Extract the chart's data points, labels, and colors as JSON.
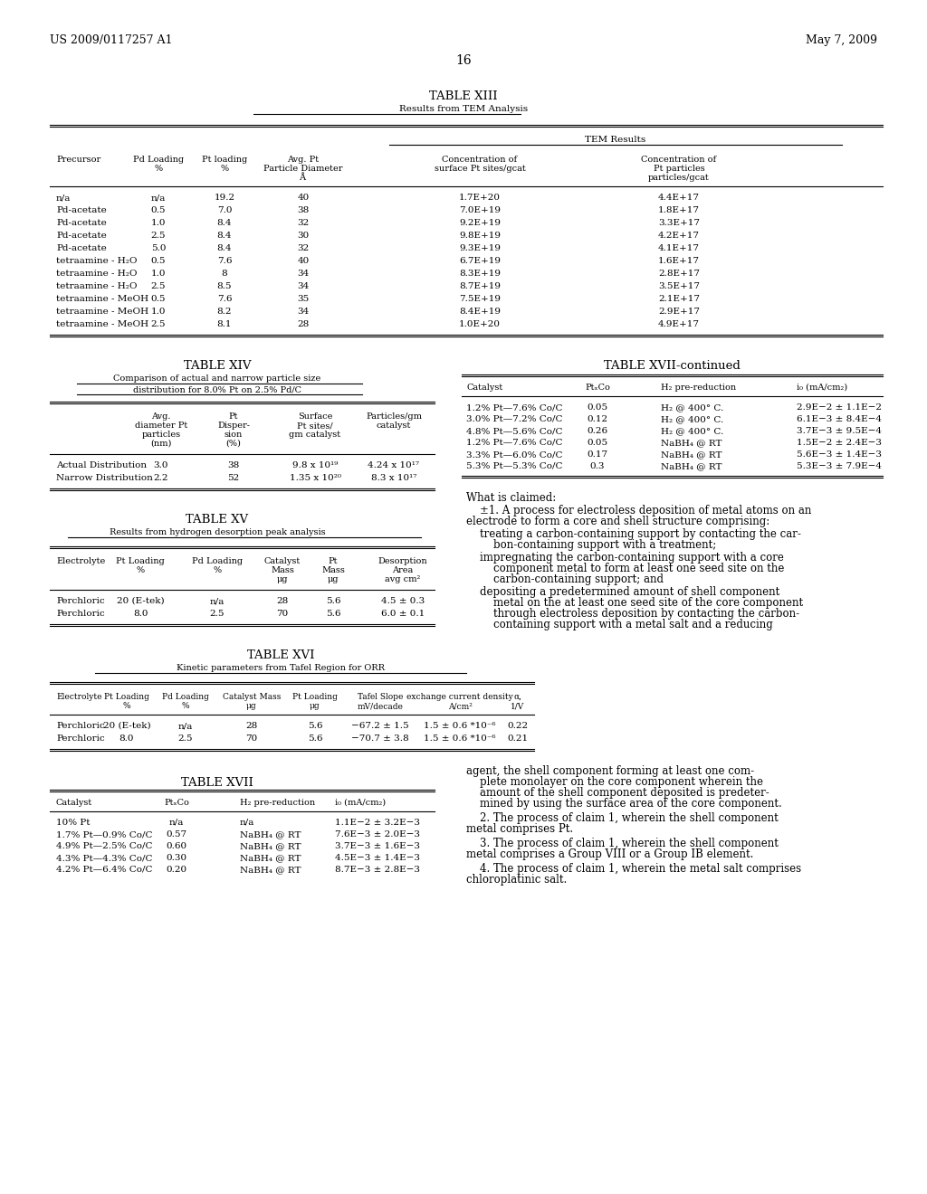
{
  "header_left": "US 2009/0117257 A1",
  "header_right": "May 7, 2009",
  "page_num": "16",
  "bg_color": "#ffffff",
  "text_color": "#000000",
  "table13_rows": [
    [
      "n/a",
      "n/a",
      "19.2",
      "40",
      "1.7E+20",
      "4.4E+17"
    ],
    [
      "Pd-acetate",
      "0.5",
      "7.0",
      "38",
      "7.0E+19",
      "1.8E+17"
    ],
    [
      "Pd-acetate",
      "1.0",
      "8.4",
      "32",
      "9.2E+19",
      "3.3E+17"
    ],
    [
      "Pd-acetate",
      "2.5",
      "8.4",
      "30",
      "9.8E+19",
      "4.2E+17"
    ],
    [
      "Pd-acetate",
      "5.0",
      "8.4",
      "32",
      "9.3E+19",
      "4.1E+17"
    ],
    [
      "tetraamine - H₂O",
      "0.5",
      "7.6",
      "40",
      "6.7E+19",
      "1.6E+17"
    ],
    [
      "tetraamine - H₂O",
      "1.0",
      "8",
      "34",
      "8.3E+19",
      "2.8E+17"
    ],
    [
      "tetraamine - H₂O",
      "2.5",
      "8.5",
      "34",
      "8.7E+19",
      "3.5E+17"
    ],
    [
      "tetraamine - MeOH",
      "0.5",
      "7.6",
      "35",
      "7.5E+19",
      "2.1E+17"
    ],
    [
      "tetraamine - MeOH",
      "1.0",
      "8.2",
      "34",
      "8.4E+19",
      "2.9E+17"
    ],
    [
      "tetraamine - MeOH",
      "2.5",
      "8.1",
      "28",
      "1.0E+20",
      "4.9E+17"
    ]
  ],
  "table14_rows": [
    [
      "Actual Distribution",
      "3.0",
      "38",
      "9.8 x 10¹⁹",
      "4.24 x 10¹⁷"
    ],
    [
      "Narrow Distribution",
      "2.2",
      "52",
      "1.35 x 10²⁰",
      "8.3 x 10¹⁷"
    ]
  ],
  "table15_rows": [
    [
      "Perchloric",
      "20 (E-tek)",
      "n/a",
      "28",
      "5.6",
      "4.5 ± 0.3"
    ],
    [
      "Perchloric",
      "8.0",
      "2.5",
      "70",
      "5.6",
      "6.0 ± 0.1"
    ]
  ],
  "table16_rows": [
    [
      "Perchloric",
      "20 (E-tek)",
      "n/a",
      "28",
      "5.6",
      "−67.2 ± 1.5",
      "1.5 ± 0.6 *10⁻⁶",
      "0.22"
    ],
    [
      "Perchloric",
      "8.0",
      "2.5",
      "70",
      "5.6",
      "−70.7 ± 3.8",
      "1.5 ± 0.6 *10⁻⁶",
      "0.21"
    ]
  ],
  "table17_rows": [
    [
      "10% Pt",
      "n/a",
      "n/a",
      "1.1E−2 ± 3.2E−3"
    ],
    [
      "1.7% Pt—0.9% Co/C",
      "0.57",
      "NaBH₄ @ RT",
      "7.6E−3 ± 2.0E−3"
    ],
    [
      "4.9% Pt—2.5% Co/C",
      "0.60",
      "NaBH₄ @ RT",
      "3.7E−3 ± 1.6E−3"
    ],
    [
      "4.3% Pt—4.3% Co/C",
      "0.30",
      "NaBH₄ @ RT",
      "4.5E−3 ± 1.4E−3"
    ],
    [
      "4.2% Pt—6.4% Co/C",
      "0.20",
      "NaBH₄ @ RT",
      "8.7E−3 ± 2.8E−3"
    ]
  ],
  "table17c_rows": [
    [
      "1.2% Pt—7.6% Co/C",
      "0.05",
      "H₂ @ 400° C.",
      "2.9E−2 ± 1.1E−2"
    ],
    [
      "3.0% Pt—7.2% Co/C",
      "0.12",
      "H₂ @ 400° C.",
      "6.1E−3 ± 8.4E−4"
    ],
    [
      "4.8% Pt—5.6% Co/C",
      "0.26",
      "H₂ @ 400° C.",
      "3.7E−3 ± 9.5E−4"
    ],
    [
      "1.2% Pt—7.6% Co/C",
      "0.05",
      "NaBH₄ @ RT",
      "1.5E−2 ± 2.4E−3"
    ],
    [
      "3.3% Pt—6.0% Co/C",
      "0.17",
      "NaBH₄ @ RT",
      "5.6E−3 ± 1.4E−3"
    ],
    [
      "5.3% Pt—5.3% Co/C",
      "0.3",
      "NaBH₄ @ RT",
      "5.3E−3 ± 7.9E−4"
    ]
  ]
}
